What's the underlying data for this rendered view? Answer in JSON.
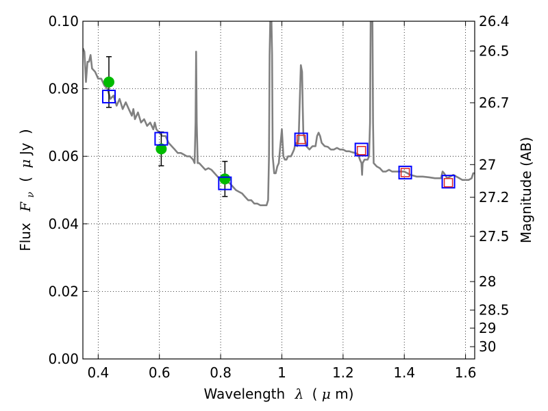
{
  "chart_data": {
    "type": "line",
    "title": "",
    "xlabel": {
      "text": "Wavelength",
      "symbol": "λ",
      "unit_open": "(",
      "unit_mu": "μ",
      "unit_rest": "m)"
    },
    "ylabel": {
      "text": "Flux",
      "symbol": "F",
      "sub": "ν",
      "unit_open": "(",
      "unit_mu": "μ",
      "unit_rest": "Jy",
      "unit_close": ")"
    },
    "y2label": "Magnitude (AB)",
    "xlim": [
      0.35,
      1.63
    ],
    "ylim": [
      0.0,
      0.1
    ],
    "xticks": [
      0.4,
      0.6,
      0.8,
      1.0,
      1.2,
      1.4,
      1.6
    ],
    "xtick_labels": [
      "0.4",
      "0.6",
      "0.8",
      "1",
      "1.2",
      "1.4",
      "1.6"
    ],
    "yticks": [
      0.0,
      0.02,
      0.04,
      0.06,
      0.08,
      0.1
    ],
    "ytick_labels": [
      "0.00",
      "0.02",
      "0.04",
      "0.06",
      "0.08",
      "0.10"
    ],
    "y2ticks": [
      26.4,
      26.5,
      26.7,
      27,
      27.2,
      27.5,
      28,
      28.5,
      29,
      30
    ],
    "y2tick_labels": [
      "26.4",
      "26.5",
      "26.7",
      "27",
      "27.2",
      "27.5",
      "28",
      "28.5",
      "29",
      "30"
    ],
    "grid": true,
    "series": [
      {
        "kind": "line",
        "color": "#808080",
        "points": [
          [
            0.35,
            0.092
          ],
          [
            0.355,
            0.091
          ],
          [
            0.36,
            0.082
          ],
          [
            0.365,
            0.088
          ],
          [
            0.37,
            0.088
          ],
          [
            0.375,
            0.09
          ],
          [
            0.38,
            0.086
          ],
          [
            0.39,
            0.085
          ],
          [
            0.4,
            0.083
          ],
          [
            0.41,
            0.083
          ],
          [
            0.42,
            0.081
          ],
          [
            0.43,
            0.08
          ],
          [
            0.44,
            0.077
          ],
          [
            0.45,
            0.078
          ],
          [
            0.46,
            0.075
          ],
          [
            0.47,
            0.077
          ],
          [
            0.48,
            0.074
          ],
          [
            0.49,
            0.076
          ],
          [
            0.5,
            0.074
          ],
          [
            0.51,
            0.072
          ],
          [
            0.515,
            0.074
          ],
          [
            0.52,
            0.071
          ],
          [
            0.53,
            0.073
          ],
          [
            0.54,
            0.07
          ],
          [
            0.55,
            0.071
          ],
          [
            0.56,
            0.069
          ],
          [
            0.57,
            0.07
          ],
          [
            0.58,
            0.068
          ],
          [
            0.585,
            0.07
          ],
          [
            0.59,
            0.068
          ],
          [
            0.6,
            0.067
          ],
          [
            0.61,
            0.066
          ],
          [
            0.62,
            0.066
          ],
          [
            0.63,
            0.064
          ],
          [
            0.64,
            0.063
          ],
          [
            0.65,
            0.062
          ],
          [
            0.66,
            0.061
          ],
          [
            0.67,
            0.061
          ],
          [
            0.68,
            0.0605
          ],
          [
            0.69,
            0.06
          ],
          [
            0.7,
            0.06
          ],
          [
            0.71,
            0.059
          ],
          [
            0.715,
            0.058
          ],
          [
            0.718,
            0.07
          ],
          [
            0.72,
            0.091
          ],
          [
            0.722,
            0.07
          ],
          [
            0.725,
            0.058
          ],
          [
            0.73,
            0.058
          ],
          [
            0.74,
            0.057
          ],
          [
            0.75,
            0.056
          ],
          [
            0.76,
            0.0565
          ],
          [
            0.77,
            0.056
          ],
          [
            0.78,
            0.055
          ],
          [
            0.79,
            0.054
          ],
          [
            0.8,
            0.053
          ],
          [
            0.81,
            0.053
          ],
          [
            0.82,
            0.0525
          ],
          [
            0.83,
            0.052
          ],
          [
            0.84,
            0.051
          ],
          [
            0.85,
            0.05
          ],
          [
            0.86,
            0.0495
          ],
          [
            0.87,
            0.049
          ],
          [
            0.88,
            0.048
          ],
          [
            0.89,
            0.047
          ],
          [
            0.9,
            0.047
          ],
          [
            0.91,
            0.046
          ],
          [
            0.92,
            0.046
          ],
          [
            0.93,
            0.0455
          ],
          [
            0.94,
            0.0455
          ],
          [
            0.95,
            0.0455
          ],
          [
            0.955,
            0.047
          ],
          [
            0.958,
            0.06
          ],
          [
            0.96,
            0.09
          ],
          [
            0.962,
            0.1
          ],
          [
            0.966,
            0.1
          ],
          [
            0.968,
            0.09
          ],
          [
            0.97,
            0.06
          ],
          [
            0.975,
            0.055
          ],
          [
            0.98,
            0.055
          ],
          [
            0.985,
            0.057
          ],
          [
            0.99,
            0.058
          ],
          [
            0.995,
            0.063
          ],
          [
            1.0,
            0.068
          ],
          [
            1.005,
            0.06
          ],
          [
            1.01,
            0.059
          ],
          [
            1.015,
            0.059
          ],
          [
            1.02,
            0.06
          ],
          [
            1.03,
            0.06
          ],
          [
            1.035,
            0.061
          ],
          [
            1.04,
            0.062
          ],
          [
            1.045,
            0.064
          ],
          [
            1.05,
            0.063
          ],
          [
            1.055,
            0.065
          ],
          [
            1.058,
            0.075
          ],
          [
            1.062,
            0.087
          ],
          [
            1.066,
            0.085
          ],
          [
            1.068,
            0.075
          ],
          [
            1.07,
            0.067
          ],
          [
            1.08,
            0.063
          ],
          [
            1.09,
            0.062
          ],
          [
            1.1,
            0.063
          ],
          [
            1.11,
            0.063
          ],
          [
            1.115,
            0.066
          ],
          [
            1.12,
            0.067
          ],
          [
            1.125,
            0.066
          ],
          [
            1.13,
            0.064
          ],
          [
            1.14,
            0.063
          ],
          [
            1.15,
            0.0628
          ],
          [
            1.16,
            0.062
          ],
          [
            1.17,
            0.062
          ],
          [
            1.18,
            0.0625
          ],
          [
            1.19,
            0.062
          ],
          [
            1.2,
            0.062
          ],
          [
            1.21,
            0.0615
          ],
          [
            1.22,
            0.0615
          ],
          [
            1.23,
            0.0612
          ],
          [
            1.24,
            0.061
          ],
          [
            1.25,
            0.0605
          ],
          [
            1.255,
            0.059
          ],
          [
            1.26,
            0.058
          ],
          [
            1.262,
            0.0545
          ],
          [
            1.264,
            0.058
          ],
          [
            1.27,
            0.059
          ],
          [
            1.28,
            0.059
          ],
          [
            1.285,
            0.06
          ],
          [
            1.288,
            0.07
          ],
          [
            1.29,
            0.1
          ],
          [
            1.296,
            0.1
          ],
          [
            1.298,
            0.07
          ],
          [
            1.3,
            0.058
          ],
          [
            1.31,
            0.057
          ],
          [
            1.32,
            0.0565
          ],
          [
            1.33,
            0.0555
          ],
          [
            1.34,
            0.0555
          ],
          [
            1.35,
            0.056
          ],
          [
            1.36,
            0.0555
          ],
          [
            1.37,
            0.0555
          ],
          [
            1.38,
            0.0555
          ],
          [
            1.4,
            0.0555
          ],
          [
            1.42,
            0.0545
          ],
          [
            1.44,
            0.054
          ],
          [
            1.46,
            0.054
          ],
          [
            1.48,
            0.0538
          ],
          [
            1.5,
            0.0535
          ],
          [
            1.51,
            0.0535
          ],
          [
            1.52,
            0.0535
          ],
          [
            1.525,
            0.0555
          ],
          [
            1.53,
            0.055
          ],
          [
            1.54,
            0.0535
          ],
          [
            1.55,
            0.054
          ],
          [
            1.56,
            0.0545
          ],
          [
            1.57,
            0.054
          ],
          [
            1.58,
            0.0535
          ],
          [
            1.59,
            0.053
          ],
          [
            1.6,
            0.053
          ],
          [
            1.61,
            0.053
          ],
          [
            1.62,
            0.0535
          ],
          [
            1.625,
            0.055
          ],
          [
            1.63,
            0.055
          ]
        ]
      },
      {
        "kind": "scatter",
        "marker": "circle",
        "color": "#00bb00",
        "points": [
          {
            "x": 0.435,
            "y": 0.082,
            "yerr": [
              0.0075,
              0.0075
            ]
          },
          {
            "x": 0.606,
            "y": 0.0622,
            "yerr": [
              0.005,
              0.005
            ]
          },
          {
            "x": 0.814,
            "y": 0.0533,
            "yerr": [
              0.0052,
              0.0052
            ]
          }
        ]
      },
      {
        "kind": "scatter",
        "marker": "open-square",
        "color": "#0000ff",
        "points": [
          {
            "x": 0.435,
            "y": 0.0777
          },
          {
            "x": 0.606,
            "y": 0.0652
          },
          {
            "x": 0.814,
            "y": 0.052
          },
          {
            "x": 1.063,
            "y": 0.065
          },
          {
            "x": 1.26,
            "y": 0.062
          },
          {
            "x": 1.403,
            "y": 0.0552
          },
          {
            "x": 1.544,
            "y": 0.0525
          }
        ]
      },
      {
        "kind": "scatter",
        "marker": "open-square-small",
        "color": "#dd2222",
        "points": [
          {
            "x": 1.063,
            "y": 0.065
          },
          {
            "x": 1.26,
            "y": 0.0617
          },
          {
            "x": 1.403,
            "y": 0.0552
          },
          {
            "x": 1.544,
            "y": 0.0522
          }
        ]
      }
    ]
  }
}
